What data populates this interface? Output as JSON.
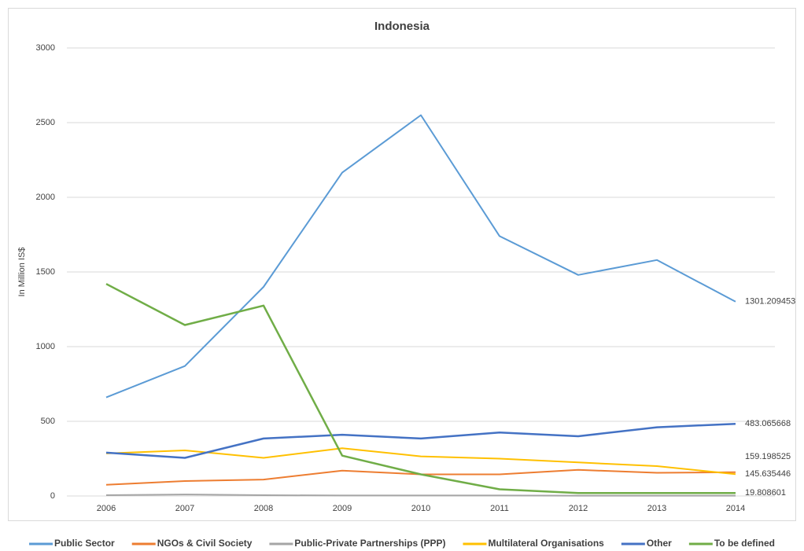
{
  "chart_data": {
    "type": "line",
    "title": "Indonesia",
    "y_label": "In Million IS$",
    "x": [
      "2006",
      "2007",
      "2008",
      "2009",
      "2010",
      "2011",
      "2012",
      "2013",
      "2014"
    ],
    "ylim": [
      0,
      3000
    ],
    "yticks": [
      0,
      500,
      1000,
      1500,
      2000,
      2500,
      3000
    ],
    "grid": true,
    "legend": "bottom",
    "series": [
      {
        "name": "Public Sector",
        "color": "#5b9bd5",
        "values": [
          660,
          870,
          1400,
          2165,
          2550,
          1740,
          1480,
          1580,
          1301.209453
        ],
        "value_labels": [
          null,
          null,
          null,
          null,
          null,
          null,
          null,
          null,
          "1301.209453"
        ]
      },
      {
        "name": "NGOs & Civil Society",
        "color": "#ed7d31",
        "values": [
          75,
          100,
          110,
          170,
          145,
          145,
          175,
          155,
          159.198525
        ],
        "value_labels": [
          null,
          null,
          null,
          null,
          null,
          null,
          null,
          null,
          "159.198525"
        ]
      },
      {
        "name": "Public-Private Partnerships (PPP)",
        "color": "#a5a5a5",
        "values": [
          5,
          10,
          5,
          3,
          3,
          3,
          2,
          2,
          2
        ]
      },
      {
        "name": "Multilateral Organisations",
        "color": "#ffc000",
        "values": [
          285,
          305,
          255,
          320,
          265,
          250,
          225,
          200,
          145.635446
        ],
        "value_labels": [
          null,
          null,
          null,
          null,
          null,
          null,
          null,
          null,
          "145.635446"
        ]
      },
      {
        "name": "Other",
        "color": "#4472c4",
        "values": [
          290,
          255,
          385,
          410,
          385,
          425,
          400,
          460,
          483.065668
        ],
        "value_labels": [
          null,
          null,
          null,
          null,
          null,
          null,
          null,
          null,
          "483.065668"
        ]
      },
      {
        "name": "To be defined",
        "color": "#70ad47",
        "values": [
          1420,
          1145,
          1275,
          270,
          145,
          45,
          20,
          20,
          19.808601
        ],
        "value_labels": [
          null,
          null,
          null,
          null,
          null,
          null,
          null,
          null,
          "19.808601"
        ]
      }
    ]
  }
}
